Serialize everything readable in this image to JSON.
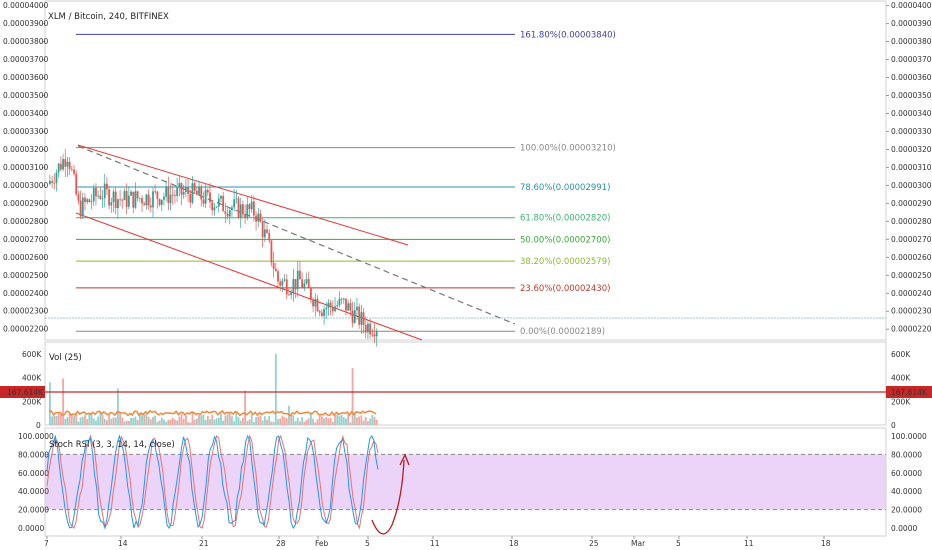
{
  "title": "XLM / Bitcoin, 240, BITFINEX",
  "price_axis": {
    "ticks": [
      "0.00004000",
      "0.00003900",
      "0.00003800",
      "0.00003700",
      "0.00003600",
      "0.00003500",
      "0.00003400",
      "0.00003300",
      "0.00003200",
      "0.00003100",
      "0.00003000",
      "0.00002900",
      "0.00002800",
      "0.00002700",
      "0.00002600",
      "0.00002500",
      "0.00002400",
      "0.00002300",
      "0.00002200"
    ],
    "range": [
      2.14e-05,
      4.02e-05
    ]
  },
  "date_axis": [
    "7",
    "14",
    "21",
    "28",
    "Feb",
    "5",
    "11",
    "18",
    "25",
    "Mar",
    "5",
    "11",
    "18"
  ],
  "fib_levels": [
    {
      "label": "161.80%(0.00003840)",
      "value": 3.84e-05,
      "color": "#3f3fa6"
    },
    {
      "label": "100.00%(0.00003210)",
      "value": 3.21e-05,
      "color": "#888888"
    },
    {
      "label": "78.60%(0.00002991)",
      "value": 2.991e-05,
      "color": "#2a93a8"
    },
    {
      "label": "61.80%(0.00002820)",
      "value": 2.82e-05,
      "color": "#3cb371"
    },
    {
      "label": "50.00%(0.00002700)",
      "value": 2.7e-05,
      "color": "#3aa83a"
    },
    {
      "label": "38.20%(0.00002579)",
      "value": 2.579e-05,
      "color": "#8cba2e"
    },
    {
      "label": "23.60%(0.00002430)",
      "value": 2.43e-05,
      "color": "#c0392b"
    },
    {
      "label": "0.00%(0.00002189)",
      "value": 2.189e-05,
      "color": "#888888"
    }
  ],
  "volume": {
    "label": "Vol (25)",
    "ticks": [
      "600K",
      "400K",
      "200K",
      "0"
    ],
    "last_value_label": "167.614K",
    "ma_value": 167614
  },
  "stoch_rsi": {
    "label": "Stoch RSI (3, 3, 14, 14, close)",
    "ticks": [
      "100.0000",
      "80.0000",
      "60.0000",
      "40.0000",
      "20.0000",
      "0.0000"
    ],
    "upper_band": 80,
    "lower_band": 20
  },
  "colors": {
    "up": "#26a69a",
    "down": "#ef5350",
    "channel": "#e53935",
    "trend_dashed": "#777777",
    "volume_ma": "#f0883e",
    "stoch_k": "#2196f3",
    "stoch_d": "#e57373",
    "stoch_band": "#e6c6f7",
    "annotation_arrow": "#b71c1c"
  },
  "chart_data": {
    "type": "candlestick",
    "symbol": "XLM / Bitcoin",
    "interval": "240",
    "exchange": "BITFINEX",
    "approx_close_path": [
      {
        "date": "Jan 7",
        "close": 2.99e-05
      },
      {
        "date": "Jan 9",
        "close": 3.18e-05
      },
      {
        "date": "Jan 10",
        "close": 2.87e-05
      },
      {
        "date": "Jan 12",
        "close": 2.96e-05
      },
      {
        "date": "Jan 14",
        "close": 2.92e-05
      },
      {
        "date": "Jan 17",
        "close": 2.94e-05
      },
      {
        "date": "Jan 20",
        "close": 2.96e-05
      },
      {
        "date": "Jan 23",
        "close": 2.89e-05
      },
      {
        "date": "Jan 26",
        "close": 2.85e-05
      },
      {
        "date": "Jan 27",
        "close": 2.7e-05
      },
      {
        "date": "Jan 28",
        "close": 2.47e-05
      },
      {
        "date": "Jan 29",
        "close": 2.45e-05
      },
      {
        "date": "Jan 30",
        "close": 2.47e-05
      },
      {
        "date": "Feb 1",
        "close": 2.32e-05
      },
      {
        "date": "Feb 3",
        "close": 2.34e-05
      },
      {
        "date": "Feb 5",
        "close": 2.22e-05
      }
    ]
  }
}
